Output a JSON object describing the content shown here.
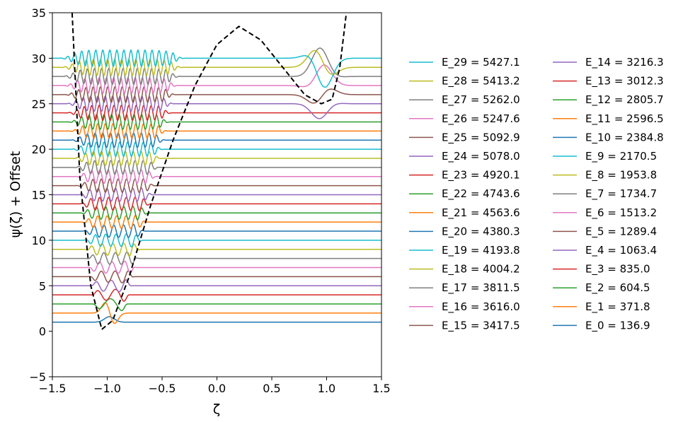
{
  "chart_data": {
    "type": "line",
    "xlabel": "ζ",
    "ylabel": "ψ(ζ) + Offset",
    "xlim": [
      -1.5,
      1.5
    ],
    "ylim": [
      -5,
      35
    ],
    "xticks": [
      "−1.5",
      "−1.0",
      "−0.5",
      "0.0",
      "0.5",
      "1.0",
      "1.5"
    ],
    "yticks": [
      "−5",
      "0",
      "5",
      "10",
      "15",
      "20",
      "25",
      "30",
      "35"
    ],
    "grid": false,
    "legend_placement": "outside-right",
    "potential": {
      "style": "dashed",
      "color": "#000000",
      "points": [
        [
          -1.32,
          35
        ],
        [
          -1.25,
          17
        ],
        [
          -1.15,
          5
        ],
        [
          -1.05,
          0.2
        ],
        [
          -0.95,
          1.2
        ],
        [
          -0.8,
          6
        ],
        [
          -0.6,
          14
        ],
        [
          -0.4,
          21
        ],
        [
          -0.2,
          27
        ],
        [
          0.0,
          31.5
        ],
        [
          0.2,
          33.5
        ],
        [
          0.4,
          32
        ],
        [
          0.6,
          29
        ],
        [
          0.8,
          26
        ],
        [
          0.95,
          25
        ],
        [
          1.05,
          25.5
        ],
        [
          1.12,
          29
        ],
        [
          1.18,
          35
        ]
      ]
    },
    "series": [
      {
        "name": "E_0 = 136.9",
        "offset": 1,
        "color": "#1f77b4"
      },
      {
        "name": "E_1 = 371.8",
        "offset": 2,
        "color": "#ff7f0e"
      },
      {
        "name": "E_2 = 604.5",
        "offset": 3,
        "color": "#2ca02c"
      },
      {
        "name": "E_3 = 835.0",
        "offset": 4,
        "color": "#d62728"
      },
      {
        "name": "E_4 = 1063.4",
        "offset": 5,
        "color": "#9467bd"
      },
      {
        "name": "E_5 = 1289.4",
        "offset": 6,
        "color": "#8c564b"
      },
      {
        "name": "E_6 = 1513.2",
        "offset": 7,
        "color": "#e377c2"
      },
      {
        "name": "E_7 = 1734.7",
        "offset": 8,
        "color": "#7f7f7f"
      },
      {
        "name": "E_8 = 1953.8",
        "offset": 9,
        "color": "#bcbd22"
      },
      {
        "name": "E_9 = 2170.5",
        "offset": 10,
        "color": "#17becf"
      },
      {
        "name": "E_10 = 2384.8",
        "offset": 11,
        "color": "#1f77b4"
      },
      {
        "name": "E_11 = 2596.5",
        "offset": 12,
        "color": "#ff7f0e"
      },
      {
        "name": "E_12 = 2805.7",
        "offset": 13,
        "color": "#2ca02c"
      },
      {
        "name": "E_13 = 3012.3",
        "offset": 14,
        "color": "#d62728"
      },
      {
        "name": "E_14 = 3216.3",
        "offset": 15,
        "color": "#9467bd"
      },
      {
        "name": "E_15 = 3417.5",
        "offset": 16,
        "color": "#8c564b"
      },
      {
        "name": "E_16 = 3616.0",
        "offset": 17,
        "color": "#e377c2"
      },
      {
        "name": "E_17 = 3811.5",
        "offset": 18,
        "color": "#7f7f7f"
      },
      {
        "name": "E_18 = 4004.2",
        "offset": 19,
        "color": "#bcbd22"
      },
      {
        "name": "E_19 = 4193.8",
        "offset": 20,
        "color": "#17becf"
      },
      {
        "name": "E_20 = 4380.3",
        "offset": 21,
        "color": "#1f77b4"
      },
      {
        "name": "E_21 = 4563.6",
        "offset": 22,
        "color": "#ff7f0e"
      },
      {
        "name": "E_22 = 4743.6",
        "offset": 23,
        "color": "#2ca02c"
      },
      {
        "name": "E_23 = 4920.1",
        "offset": 24,
        "color": "#d62728"
      },
      {
        "name": "E_24 = 5078.0",
        "offset": 25,
        "color": "#9467bd"
      },
      {
        "name": "E_25 = 5092.9",
        "offset": 26,
        "color": "#8c564b"
      },
      {
        "name": "E_26 = 5247.6",
        "offset": 27,
        "color": "#e377c2"
      },
      {
        "name": "E_27 = 5262.0",
        "offset": 28,
        "color": "#7f7f7f"
      },
      {
        "name": "E_28 = 5413.2",
        "offset": 29,
        "color": "#bcbd22"
      },
      {
        "name": "E_29 = 5427.1",
        "offset": 30,
        "color": "#17becf"
      }
    ]
  }
}
